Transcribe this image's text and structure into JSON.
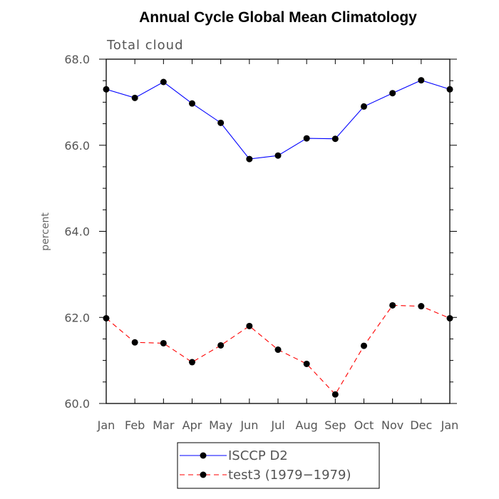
{
  "chart_data": {
    "type": "line",
    "title": "Annual Cycle Global Mean Climatology",
    "subtitle": "Total cloud",
    "xlabel": "",
    "ylabel": "percent",
    "categories": [
      "Jan",
      "Feb",
      "Mar",
      "Apr",
      "May",
      "Jun",
      "Jul",
      "Aug",
      "Sep",
      "Oct",
      "Nov",
      "Dec",
      "Jan"
    ],
    "ylim": [
      60,
      68
    ],
    "yticks": [
      60,
      62,
      64,
      66,
      68
    ],
    "ytick_labels": [
      "60.0",
      "62.0",
      "64.0",
      "66.0",
      "68.0"
    ],
    "series": [
      {
        "name": "ISCCP D2",
        "color": "#0000ff",
        "dash": "solid",
        "values": [
          67.3,
          67.1,
          67.47,
          66.97,
          66.52,
          65.68,
          65.76,
          66.16,
          66.15,
          66.9,
          67.21,
          67.51,
          67.3
        ]
      },
      {
        "name": "test3 (1979-1979)",
        "color": "#ff0000",
        "dash": "dashed",
        "values": [
          61.98,
          61.42,
          61.4,
          60.96,
          61.35,
          61.8,
          61.25,
          60.92,
          60.21,
          61.34,
          62.28,
          62.26,
          61.98
        ]
      }
    ],
    "legend": {
      "position": "bottom-center",
      "labels": [
        "ISCCP D2",
        "test3 (1979−1979)"
      ]
    }
  }
}
